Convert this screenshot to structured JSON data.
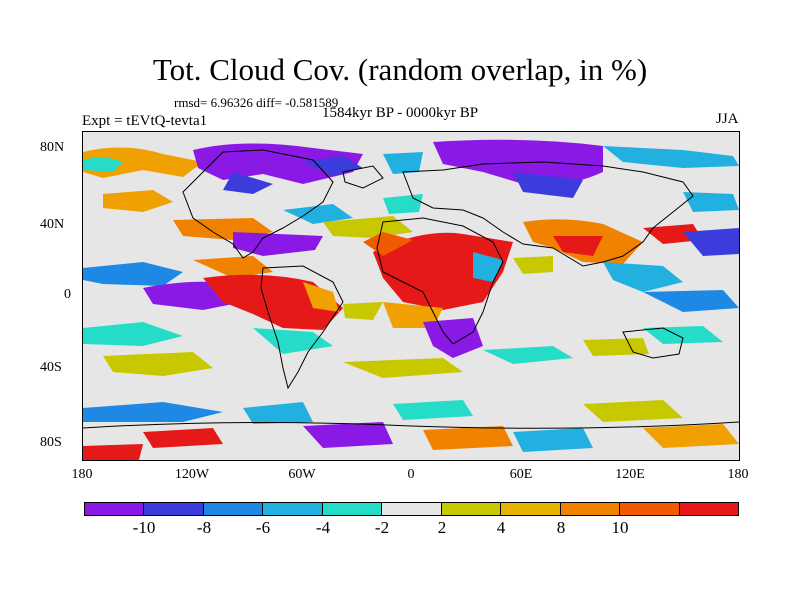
{
  "title": "Tot. Cloud Cov. (random overlap, in %)",
  "stats": "rmsd= 6.96326 diff= -0.581589",
  "experiment": "Expt = tEVtQ-tevta1",
  "period": "1584kyr BP - 0000kyr BP",
  "season": "JJA",
  "latitude_labels": [
    "80N",
    "40N",
    "0",
    "40S",
    "80S"
  ],
  "longitude_labels": [
    "180",
    "120W",
    "60W",
    "0",
    "60E",
    "120E",
    "180"
  ],
  "colorbar": {
    "colors": [
      "#8a19e6",
      "#3c3cdc",
      "#1e88e5",
      "#22b0e0",
      "#25dcc8",
      "#e6e6e6",
      "#c8c800",
      "#e6b400",
      "#f08200",
      "#f05a00",
      "#e61919"
    ],
    "labels": [
      "-10",
      "-8",
      "-6",
      "-4",
      "-2",
      "2",
      "4",
      "8",
      "10"
    ]
  }
}
